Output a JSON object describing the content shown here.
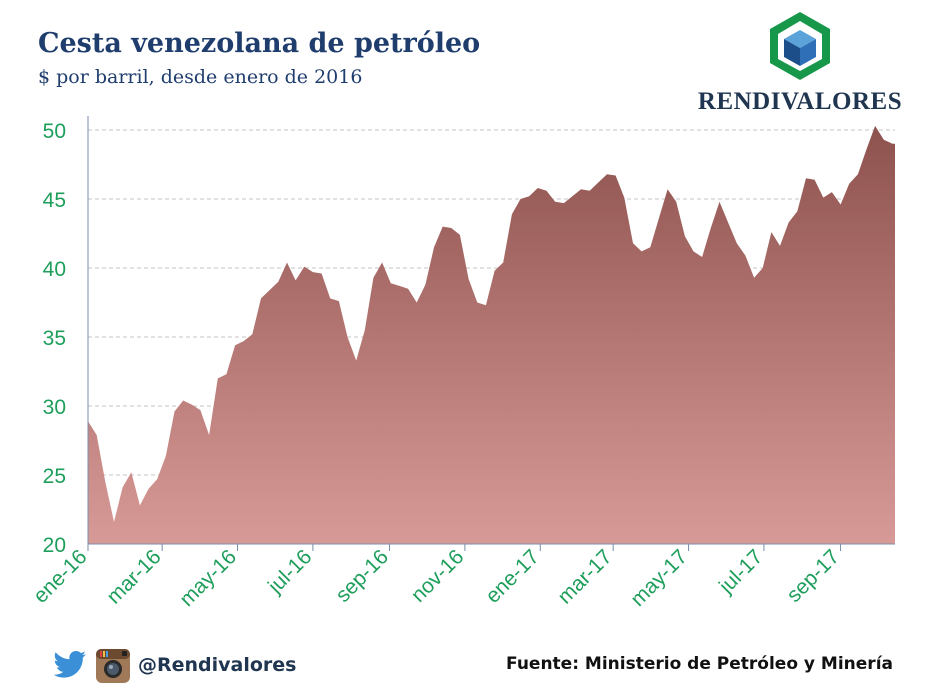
{
  "title": "Cesta venezolana de petróleo",
  "subtitle": "$ por barril, desde enero de 2016",
  "logo": {
    "brand": "RENDIVALORES"
  },
  "footer": {
    "handle": "@Rendivalores",
    "source": "Fuente: Ministerio de Petróleo y Minería",
    "icons": [
      "twitter-icon",
      "instagram-icon"
    ]
  },
  "colors": {
    "title": "#1f3e6e",
    "axis_labels": "#1e9e5b",
    "area_top": "#8e524e",
    "area_bottom": "#d89a97",
    "grid": "#c6c6c6"
  },
  "chart_data": {
    "type": "area",
    "title": "Cesta venezolana de petróleo",
    "subtitle": "$ por barril, desde enero de 2016",
    "xlabel": "",
    "ylabel": "",
    "ylim": [
      20,
      50
    ],
    "yticks": [
      20,
      25,
      30,
      35,
      40,
      45,
      50
    ],
    "xticks": [
      "ene-16",
      "mar-16",
      "may-16",
      "jul-16",
      "sep-16",
      "nov-16",
      "ene-17",
      "mar-17",
      "may-17",
      "jul-17",
      "sep-17"
    ],
    "grid": "horizontal dashed",
    "x_unit": "weeks since first week of January 2016",
    "series": [
      {
        "name": "",
        "values": [
          28.9,
          27.9,
          24.5,
          21.6,
          24.1,
          25.2,
          22.8,
          24.0,
          24.7,
          26.4,
          29.6,
          30.4,
          30.1,
          29.7,
          27.9,
          32.0,
          32.3,
          34.4,
          34.7,
          35.2,
          37.8,
          38.4,
          39.0,
          40.4,
          39.1,
          40.1,
          39.7,
          39.6,
          37.8,
          37.6,
          35.0,
          33.3,
          35.5,
          39.3,
          40.4,
          38.9,
          38.7,
          38.5,
          37.5,
          38.8,
          41.5,
          43.0,
          42.9,
          42.4,
          39.2,
          37.5,
          37.3,
          39.8,
          40.4,
          43.9,
          45.0,
          45.2,
          45.8,
          45.6,
          44.8,
          44.7,
          45.2,
          45.7,
          45.6,
          46.2,
          46.8,
          46.7,
          45.1,
          41.8,
          41.2,
          41.5,
          43.6,
          45.7,
          44.8,
          42.3,
          41.2,
          40.8,
          42.9,
          44.8,
          43.3,
          41.8,
          40.9,
          39.3,
          40.0,
          42.6,
          41.6,
          43.3,
          44.1,
          46.5,
          46.4,
          45.1,
          45.5,
          44.6,
          46.1,
          46.8,
          48.6,
          50.3,
          49.3,
          49.0
        ]
      }
    ]
  }
}
